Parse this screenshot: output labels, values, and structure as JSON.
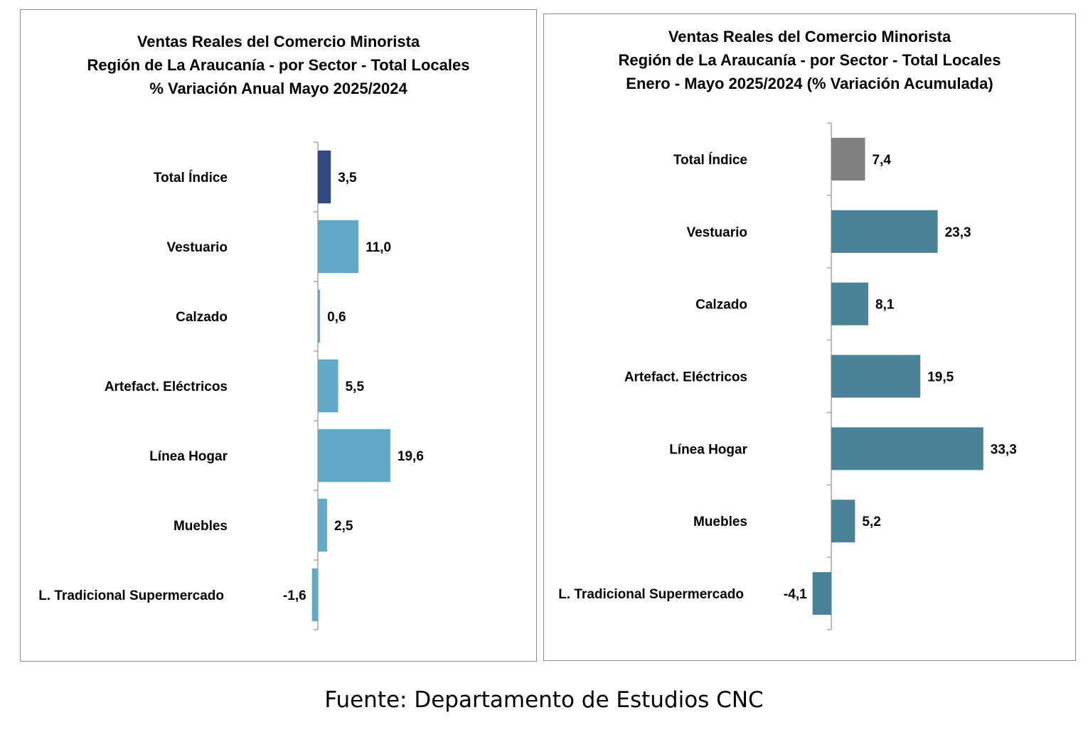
{
  "chart_data": [
    {
      "type": "bar",
      "orientation": "horizontal",
      "title_lines": [
        "Ventas Reales del Comercio Minorista",
        "Región de La Araucanía - por Sector - Total Locales",
        "% Variación Anual Mayo 2025/2024"
      ],
      "categories": [
        "Total Índice",
        "Vestuario",
        "Calzado",
        "Artefact. Eléctricos",
        "Línea Hogar",
        "Muebles",
        "L. Tradicional Supermercado"
      ],
      "values": [
        3.5,
        11.0,
        0.6,
        5.5,
        19.6,
        2.5,
        -1.6
      ],
      "value_labels": [
        "3,5",
        "11,0",
        "0,6",
        "5,5",
        "19,6",
        "2,5",
        "-1,6"
      ],
      "bar_colors": [
        "#2e4a7e",
        "#63aac6",
        "#63aac6",
        "#63aac6",
        "#63aac6",
        "#63aac6",
        "#63aac6"
      ],
      "axis_color": "#a6a6a6",
      "grid": false,
      "legend": "none"
    },
    {
      "type": "bar",
      "orientation": "horizontal",
      "title_lines": [
        "Ventas Reales del Comercio Minorista",
        "Región de La Araucanía - por Sector - Total Locales",
        "Enero - Mayo 2025/2024 (% Variación Acumulada)"
      ],
      "categories": [
        "Total Índice",
        "Vestuario",
        "Calzado",
        "Artefact. Eléctricos",
        "Línea Hogar",
        "Muebles",
        "L. Tradicional Supermercado"
      ],
      "values": [
        7.4,
        23.3,
        8.1,
        19.5,
        33.3,
        5.2,
        -4.1
      ],
      "value_labels": [
        "7,4",
        "23,3",
        "8,1",
        "19,5",
        "33,3",
        "5,2",
        "-4,1"
      ],
      "bar_colors": [
        "#808080",
        "#4a8399",
        "#4a8399",
        "#4a8399",
        "#4a8399",
        "#4a8399",
        "#4a8399"
      ],
      "axis_color": "#a6a6a6",
      "grid": false,
      "legend": "none"
    }
  ],
  "footer": {
    "source": "Fuente: Departamento de Estudios CNC"
  }
}
